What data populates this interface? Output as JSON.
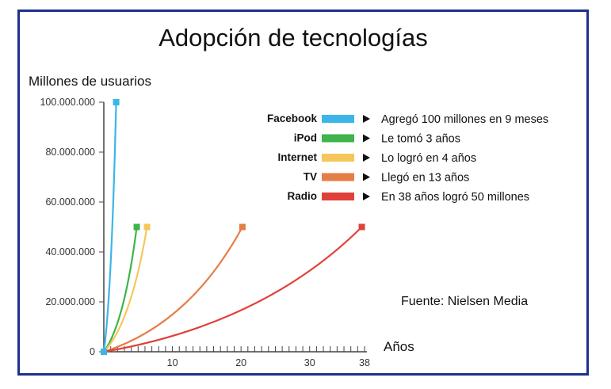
{
  "chart_data": {
    "type": "line",
    "title": "Adopción de tecnologías",
    "ylabel": "Millones de usuarios",
    "xlabel": "Años",
    "xlim": [
      0,
      38
    ],
    "ylim": [
      0,
      100000000
    ],
    "xticks": [
      10,
      20,
      30,
      38
    ],
    "yticks": [
      {
        "value": 0,
        "label": "0"
      },
      {
        "value": 20000000,
        "label": "20.000.000"
      },
      {
        "value": 40000000,
        "label": "40.000.000"
      },
      {
        "value": 60000000,
        "label": "60.000.000"
      },
      {
        "value": 80000000,
        "label": "80.000.000"
      },
      {
        "value": 100000000,
        "label": "100.000.000"
      }
    ],
    "legend_position": "top-right",
    "series": [
      {
        "name": "Facebook",
        "description": "Agregó 100 millones en 9 meses",
        "color": "#3bb6e8",
        "end_x": 1.8,
        "end_y": 100000000
      },
      {
        "name": "iPod",
        "description": "Le tomó 3 años",
        "color": "#3eb44a",
        "end_x": 4.8,
        "end_y": 50000000
      },
      {
        "name": "Internet",
        "description": "Lo logró en 4 años",
        "color": "#f5c75a",
        "end_x": 6.3,
        "end_y": 50000000
      },
      {
        "name": "TV",
        "description": "Llegó en 13 años",
        "color": "#e57e45",
        "end_x": 20.2,
        "end_y": 50000000
      },
      {
        "name": "Radio",
        "description": "En 38 años logró 50 millones",
        "color": "#e0413a",
        "end_x": 37.6,
        "end_y": 50000000
      }
    ],
    "source": "Fuente: Nielsen Media"
  }
}
